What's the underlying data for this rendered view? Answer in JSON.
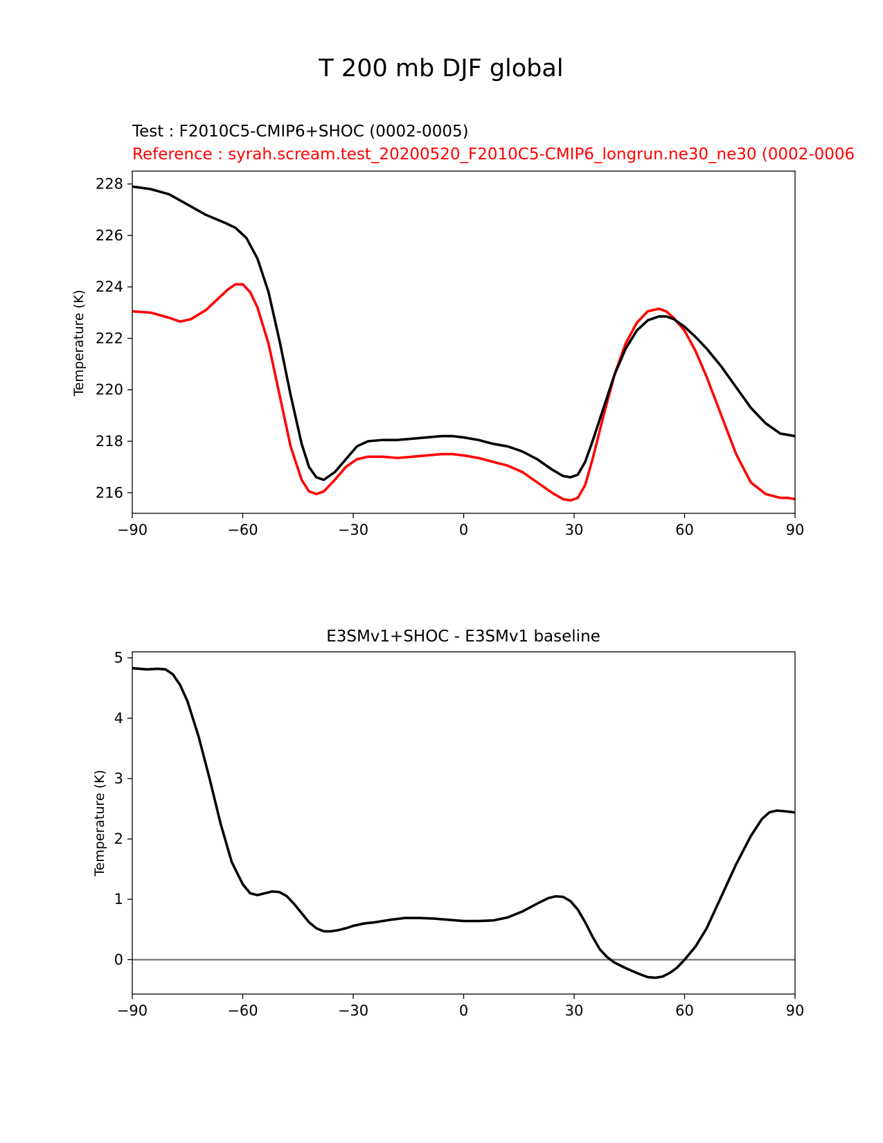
{
  "figure": {
    "suptitle": "T 200 mb DJF global"
  },
  "colors": {
    "test": "#000000",
    "reference": "#ff0000",
    "zero_line": "#808080",
    "axes": "#000000",
    "background": "#ffffff"
  },
  "chart_data": [
    {
      "type": "line",
      "title_test": "Test : F2010C5-CMIP6+SHOC (0002-0005)",
      "title_reference": "Reference : syrah.scream.test_20200520_F2010C5-CMIP6_longrun.ne30_ne30 (0002-0006",
      "xlabel": "",
      "ylabel": "Temperature (K)",
      "xlim": [
        -90,
        90
      ],
      "ylim": [
        215.2,
        228.5
      ],
      "xticks": [
        -90,
        -60,
        -30,
        0,
        30,
        60,
        90
      ],
      "xtick_labels": [
        "−90",
        "−60",
        "−30",
        "0",
        "30",
        "60",
        "90"
      ],
      "yticks": [
        216,
        218,
        220,
        222,
        224,
        226,
        228
      ],
      "ytick_labels": [
        "216",
        "218",
        "220",
        "222",
        "224",
        "226",
        "228"
      ],
      "grid": false,
      "series": [
        {
          "role": "test",
          "x": [
            -90,
            -85,
            -80,
            -75,
            -70,
            -65,
            -62,
            -59,
            -56,
            -53,
            -50,
            -47,
            -44,
            -42,
            -40,
            -38,
            -35,
            -32,
            -29,
            -26,
            -22,
            -18,
            -14,
            -10,
            -6,
            -3,
            0,
            4,
            8,
            12,
            16,
            20,
            24,
            27,
            29,
            31,
            33,
            35,
            38,
            41,
            44,
            47,
            50,
            53,
            55,
            57,
            60,
            63,
            66,
            70,
            74,
            78,
            82,
            86,
            88,
            90
          ],
          "y": [
            227.9,
            227.8,
            227.6,
            227.2,
            226.8,
            226.5,
            226.3,
            225.9,
            225.1,
            223.8,
            221.9,
            219.8,
            217.9,
            217.0,
            216.6,
            216.5,
            216.8,
            217.3,
            217.8,
            218.0,
            218.05,
            218.05,
            218.1,
            218.15,
            218.2,
            218.2,
            218.15,
            218.05,
            217.9,
            217.8,
            217.6,
            217.3,
            216.9,
            216.65,
            216.6,
            216.7,
            217.2,
            218.0,
            219.3,
            220.6,
            221.6,
            222.3,
            222.7,
            222.85,
            222.85,
            222.75,
            222.45,
            222.05,
            221.6,
            220.9,
            220.1,
            219.3,
            218.7,
            218.3,
            218.25,
            218.2
          ]
        },
        {
          "role": "reference",
          "x": [
            -90,
            -85,
            -80,
            -77,
            -74,
            -70,
            -67,
            -64,
            -62,
            -60,
            -58,
            -56,
            -53,
            -50,
            -47,
            -44,
            -42,
            -40,
            -38,
            -35,
            -32,
            -29,
            -26,
            -22,
            -18,
            -14,
            -10,
            -6,
            -3,
            0,
            4,
            8,
            12,
            16,
            20,
            24,
            27,
            29,
            31,
            33,
            35,
            38,
            41,
            44,
            47,
            50,
            53,
            55,
            57,
            60,
            63,
            66,
            70,
            74,
            78,
            82,
            86,
            88,
            90
          ],
          "y": [
            223.05,
            223.0,
            222.8,
            222.65,
            222.75,
            223.1,
            223.5,
            223.9,
            224.1,
            224.1,
            223.8,
            223.2,
            221.8,
            219.8,
            217.8,
            216.5,
            216.05,
            215.95,
            216.05,
            216.5,
            217.0,
            217.3,
            217.4,
            217.4,
            217.35,
            217.4,
            217.45,
            217.5,
            217.5,
            217.45,
            217.35,
            217.2,
            217.05,
            216.8,
            216.4,
            216.0,
            215.75,
            215.7,
            215.8,
            216.3,
            217.3,
            219.0,
            220.6,
            221.8,
            222.6,
            223.05,
            223.15,
            223.05,
            222.8,
            222.3,
            221.5,
            220.5,
            219.0,
            217.5,
            216.4,
            215.95,
            215.8,
            215.8,
            215.75
          ]
        }
      ]
    },
    {
      "type": "line",
      "title": "E3SMv1+SHOC - E3SMv1 baseline",
      "xlabel": "",
      "ylabel": "Temperature (K)",
      "xlim": [
        -90,
        90
      ],
      "ylim": [
        -0.57,
        5.1
      ],
      "xticks": [
        -90,
        -60,
        -30,
        0,
        30,
        60,
        90
      ],
      "xtick_labels": [
        "−90",
        "−60",
        "−30",
        "0",
        "30",
        "60",
        "90"
      ],
      "yticks": [
        0,
        1,
        2,
        3,
        4,
        5
      ],
      "ytick_labels": [
        "0",
        "1",
        "2",
        "3",
        "4",
        "5"
      ],
      "grid": false,
      "hline": 0,
      "series": [
        {
          "role": "test",
          "x": [
            -90,
            -86,
            -83,
            -81,
            -79,
            -77,
            -75,
            -72,
            -69,
            -66,
            -63,
            -60,
            -58,
            -56,
            -54,
            -52,
            -50,
            -48,
            -46,
            -44,
            -42,
            -40,
            -38,
            -36,
            -34,
            -32,
            -30,
            -27,
            -24,
            -20,
            -16,
            -12,
            -8,
            -4,
            0,
            4,
            8,
            12,
            16,
            20,
            23,
            25,
            27,
            29,
            31,
            33,
            35,
            37,
            39,
            41,
            44,
            47,
            50,
            52,
            54,
            56,
            58,
            60,
            63,
            66,
            70,
            74,
            78,
            81,
            83,
            85,
            87,
            90
          ],
          "y": [
            4.83,
            4.81,
            4.82,
            4.81,
            4.73,
            4.55,
            4.28,
            3.7,
            3.0,
            2.25,
            1.62,
            1.25,
            1.1,
            1.07,
            1.1,
            1.13,
            1.12,
            1.05,
            0.92,
            0.77,
            0.62,
            0.52,
            0.47,
            0.47,
            0.49,
            0.52,
            0.56,
            0.6,
            0.62,
            0.66,
            0.69,
            0.69,
            0.68,
            0.66,
            0.64,
            0.64,
            0.65,
            0.7,
            0.8,
            0.93,
            1.02,
            1.05,
            1.04,
            0.97,
            0.83,
            0.62,
            0.38,
            0.17,
            0.04,
            -0.05,
            -0.14,
            -0.22,
            -0.29,
            -0.3,
            -0.28,
            -0.22,
            -0.13,
            0.0,
            0.22,
            0.52,
            1.05,
            1.58,
            2.05,
            2.33,
            2.44,
            2.47,
            2.46,
            2.44
          ]
        }
      ]
    }
  ]
}
